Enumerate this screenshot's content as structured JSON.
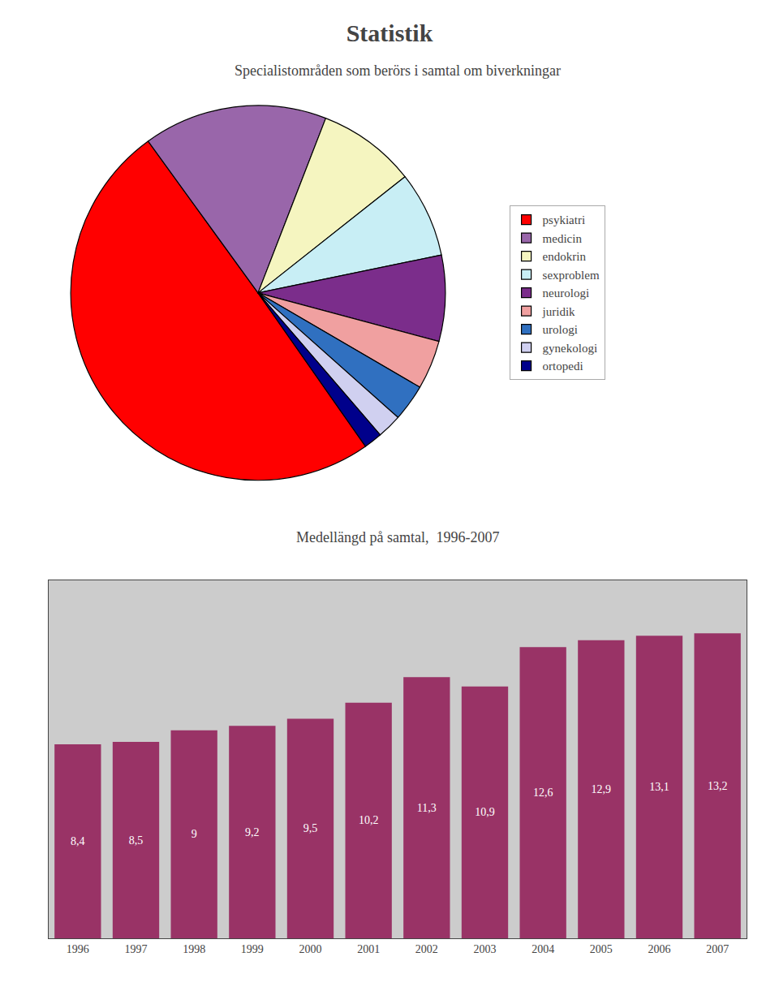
{
  "chart_data": [
    {
      "type": "pie",
      "title": "Statistik",
      "subtitle": "Specialistområden som berörs i samtal om biverkningar",
      "categories": [
        "psykiatri",
        "medicin",
        "endokrin",
        "sexproblem",
        "neurologi",
        "juridik",
        "urologi",
        "gynekologi",
        "ortopedi"
      ],
      "values": [
        47,
        15,
        8,
        7,
        7,
        4,
        3,
        2,
        1.5
      ],
      "colors": [
        "#ff0000",
        "#9966aa",
        "#f5f5c0",
        "#c8eef5",
        "#7b2d8b",
        "#f0a0a0",
        "#3070c0",
        "#d0d0f0",
        "#00008b"
      ],
      "legend": "right"
    },
    {
      "type": "bar",
      "title": "Medellängd på samtal,  1996-2007",
      "categories": [
        "1996",
        "1997",
        "1998",
        "1999",
        "2000",
        "2001",
        "2002",
        "2003",
        "2004",
        "2005",
        "2006",
        "2007"
      ],
      "values": [
        8.4,
        8.5,
        9.0,
        9.2,
        9.5,
        10.2,
        11.3,
        10.9,
        12.6,
        12.9,
        13.1,
        13.2
      ],
      "value_labels": [
        "8,4",
        "8,5",
        "9",
        "9,2",
        "9,5",
        "10,2",
        "11,3",
        "10,9",
        "12,6",
        "12,9",
        "13,1",
        "13,2"
      ],
      "data_labels": true,
      "color": "#993366",
      "ylim": [
        0,
        15.5
      ],
      "grid": false,
      "tick_labels": "x"
    }
  ]
}
